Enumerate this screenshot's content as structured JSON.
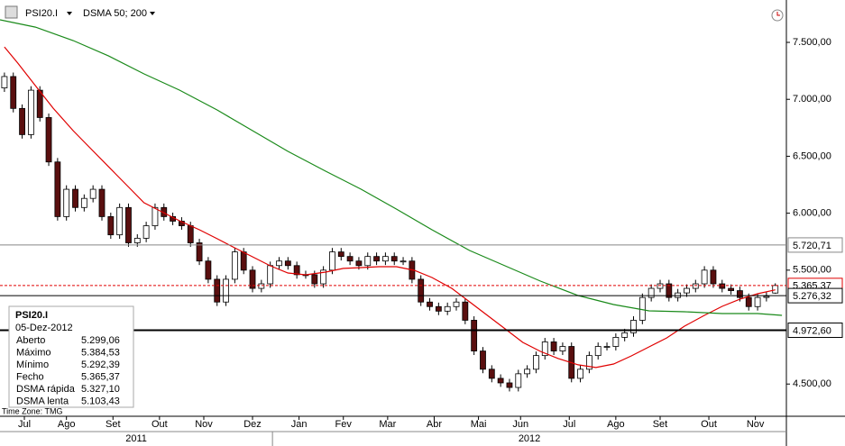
{
  "chart_data": {
    "type": "candlestick",
    "symbol": "PSI20.I",
    "indicator": "DSMA 50; 200",
    "timezone": "Time Zone: TMG",
    "up_color": "#ffffff",
    "down_color": "#5a0f0f",
    "xlim": [
      0,
      355
    ],
    "ylim": [
      4217,
      7872
    ],
    "xticks": [
      {
        "value": 11,
        "label": "Jul"
      },
      {
        "value": 30,
        "label": "Ago"
      },
      {
        "value": 51,
        "label": "Set"
      },
      {
        "value": 72,
        "label": "Out"
      },
      {
        "value": 92,
        "label": "Nov"
      },
      {
        "value": 114,
        "label": "Dez"
      },
      {
        "value": 135,
        "label": "Jan"
      },
      {
        "value": 155,
        "label": "Fev"
      },
      {
        "value": 175,
        "label": "Mar"
      },
      {
        "value": 196,
        "label": "Abr"
      },
      {
        "value": 216,
        "label": "Mai"
      },
      {
        "value": 235,
        "label": "Jun"
      },
      {
        "value": 257,
        "label": "Jul"
      },
      {
        "value": 278,
        "label": "Ago"
      },
      {
        "value": 298,
        "label": "Set"
      },
      {
        "value": 320,
        "label": "Out"
      },
      {
        "value": 341,
        "label": "Nov"
      }
    ],
    "years": [
      "2011",
      "2012"
    ],
    "year_split": 123,
    "yticks": [
      {
        "value": 4500,
        "label": "4.500,00"
      },
      {
        "value": 5500,
        "label": "5.500,00"
      },
      {
        "value": 6000,
        "label": "6.000,00"
      },
      {
        "value": 6500,
        "label": "6.500,00"
      },
      {
        "value": 7000,
        "label": "7.000,00"
      },
      {
        "value": 7500,
        "label": "7.500,00"
      }
    ],
    "x": [
      2,
      6,
      10,
      14,
      18,
      22,
      26,
      30,
      34,
      38,
      42,
      46,
      50,
      54,
      58,
      62,
      66,
      70,
      74,
      78,
      82,
      86,
      90,
      94,
      98,
      102,
      106,
      110,
      114,
      118,
      122,
      126,
      130,
      134,
      138,
      142,
      146,
      150,
      154,
      158,
      162,
      166,
      170,
      174,
      178,
      182,
      186,
      190,
      194,
      198,
      202,
      206,
      210,
      214,
      218,
      222,
      226,
      230,
      234,
      238,
      242,
      246,
      250,
      254,
      258,
      262,
      266,
      270,
      274,
      278,
      282,
      286,
      290,
      294,
      298,
      302,
      306,
      310,
      314,
      318,
      322,
      326,
      330,
      334,
      338,
      342,
      346,
      350
    ],
    "open": [
      7100,
      7200,
      6920,
      6690,
      7080,
      6840,
      6450,
      5970,
      6210,
      6050,
      6130,
      6210,
      5970,
      5810,
      6050,
      5740,
      5780,
      5890,
      6050,
      5970,
      5930,
      5890,
      5740,
      5580,
      5420,
      5220,
      5420,
      5660,
      5500,
      5340,
      5380,
      5540,
      5580,
      5540,
      5460,
      5460,
      5380,
      5500,
      5660,
      5620,
      5580,
      5540,
      5620,
      5580,
      5620,
      5580,
      5580,
      5420,
      5220,
      5180,
      5140,
      5180,
      5220,
      5060,
      4790,
      4630,
      4550,
      4510,
      4470,
      4590,
      4630,
      4750,
      4870,
      4790,
      4830,
      4550,
      4630,
      4750,
      4830,
      4830,
      4910,
      4950,
      5060,
      5260,
      5340,
      5380,
      5260,
      5300,
      5340,
      5380,
      5500,
      5380,
      5340,
      5320,
      5260,
      5180,
      5260,
      5299.06
    ],
    "high": [
      7235,
      7235,
      6955,
      7115,
      7115,
      6875,
      6485,
      6245,
      6245,
      6165,
      6245,
      6245,
      6005,
      6085,
      6085,
      5815,
      5925,
      6085,
      6085,
      6005,
      5965,
      5925,
      5775,
      5615,
      5455,
      5455,
      5695,
      5695,
      5535,
      5415,
      5575,
      5615,
      5615,
      5575,
      5495,
      5495,
      5535,
      5695,
      5695,
      5655,
      5615,
      5655,
      5655,
      5655,
      5655,
      5615,
      5615,
      5455,
      5255,
      5215,
      5215,
      5255,
      5255,
      5095,
      4825,
      4665,
      4585,
      4545,
      4625,
      4665,
      4785,
      4905,
      4905,
      4865,
      4865,
      4665,
      4785,
      4865,
      4865,
      4945,
      4985,
      5095,
      5295,
      5375,
      5415,
      5415,
      5335,
      5375,
      5415,
      5535,
      5535,
      5415,
      5375,
      5355,
      5295,
      5295,
      5305,
      5384.53
    ],
    "low": [
      7065,
      6885,
      6655,
      6655,
      6805,
      6415,
      5935,
      5935,
      6015,
      6015,
      6095,
      5935,
      5775,
      5775,
      5705,
      5705,
      5745,
      5855,
      5935,
      5895,
      5855,
      5705,
      5545,
      5385,
      5185,
      5185,
      5385,
      5465,
      5305,
      5305,
      5345,
      5505,
      5505,
      5425,
      5425,
      5345,
      5345,
      5465,
      5585,
      5545,
      5505,
      5505,
      5545,
      5545,
      5545,
      5545,
      5385,
      5185,
      5145,
      5105,
      5105,
      5145,
      5025,
      4755,
      4595,
      4515,
      4475,
      4435,
      4435,
      4555,
      4595,
      4715,
      4755,
      4755,
      4515,
      4515,
      4595,
      4715,
      4795,
      4795,
      4875,
      4915,
      5025,
      5225,
      5305,
      5225,
      5225,
      5265,
      5305,
      5345,
      5345,
      5305,
      5285,
      5225,
      5145,
      5145,
      5225,
      5292.39
    ],
    "close": [
      7200,
      6920,
      6690,
      7080,
      6840,
      6450,
      5970,
      6210,
      6050,
      6130,
      6210,
      5970,
      5810,
      6050,
      5740,
      5780,
      5890,
      6050,
      5970,
      5930,
      5890,
      5740,
      5580,
      5420,
      5220,
      5420,
      5660,
      5500,
      5340,
      5380,
      5540,
      5580,
      5540,
      5460,
      5460,
      5380,
      5500,
      5660,
      5620,
      5580,
      5540,
      5620,
      5580,
      5620,
      5580,
      5580,
      5420,
      5220,
      5180,
      5140,
      5180,
      5220,
      5060,
      4790,
      4630,
      4550,
      4510,
      4470,
      4590,
      4630,
      4750,
      4870,
      4790,
      4830,
      4550,
      4630,
      4750,
      4830,
      4830,
      4910,
      4950,
      5060,
      5260,
      5340,
      5380,
      5260,
      5300,
      5340,
      5380,
      5500,
      5380,
      5340,
      5320,
      5260,
      5180,
      5260,
      5270,
      5365.37
    ],
    "ma_series": [
      {
        "name": "DSMA rápida",
        "color": "#e00000",
        "x": [
          2,
          8,
          16,
          24,
          33,
          41,
          49,
          57,
          65,
          73,
          81,
          90,
          98,
          106,
          114,
          122,
          130,
          138,
          147,
          155,
          163,
          171,
          179,
          187,
          195,
          204,
          212,
          220,
          228,
          236,
          244,
          252,
          261,
          269,
          277,
          285,
          293,
          301,
          309,
          318,
          326,
          334,
          342,
          350
        ],
        "values": [
          7460,
          7318,
          7120,
          6922,
          6725,
          6567,
          6408,
          6250,
          6092,
          6013,
          5934,
          5855,
          5776,
          5696,
          5617,
          5538,
          5475,
          5459,
          5483,
          5515,
          5522,
          5530,
          5530,
          5499,
          5435,
          5340,
          5222,
          5103,
          4985,
          4866,
          4787,
          4724,
          4669,
          4645,
          4676,
          4747,
          4826,
          4905,
          5008,
          5103,
          5182,
          5245,
          5293,
          5327.1
        ]
      },
      {
        "name": "DSMA lenta",
        "color": "#1a8a1a",
        "x": [
          0,
          16,
          33,
          49,
          65,
          81,
          98,
          114,
          130,
          147,
          163,
          179,
          195,
          212,
          228,
          244,
          261,
          277,
          293,
          309,
          326,
          342,
          353
        ],
        "values": [
          7698,
          7634,
          7516,
          7381,
          7223,
          7081,
          6907,
          6725,
          6543,
          6369,
          6211,
          6036,
          5855,
          5673,
          5538,
          5404,
          5277,
          5198,
          5143,
          5135,
          5119,
          5119,
          5103.43
        ]
      }
    ],
    "levels": [
      {
        "value": 5720.71,
        "label": "5.720,71",
        "color": "#888888",
        "style": "solid"
      },
      {
        "value": 5365.37,
        "label": "5.365,37",
        "color": "#e00000",
        "style": "dashed"
      },
      {
        "value": 5276.32,
        "label": "5.276,32",
        "color": "#000000",
        "style": "solid"
      },
      {
        "value": 4972.6,
        "label": "4.972,60",
        "color": "#000000",
        "style": "thick"
      }
    ],
    "info": {
      "symbol": "PSI20.I",
      "date": "05-Dez-2012",
      "rows": [
        {
          "label": "Aberto",
          "value": "5.299,06"
        },
        {
          "label": "Máximo",
          "value": "5.384,53"
        },
        {
          "label": "Mínimo",
          "value": "5.292,39"
        },
        {
          "label": "Fecho",
          "value": "5.365,37"
        },
        {
          "label": "DSMA rápida",
          "value": "5.327,10",
          "color": "#e00000"
        },
        {
          "label": "DSMA lenta",
          "value": "5.103,43",
          "color": "#1a8a1a"
        }
      ]
    }
  }
}
